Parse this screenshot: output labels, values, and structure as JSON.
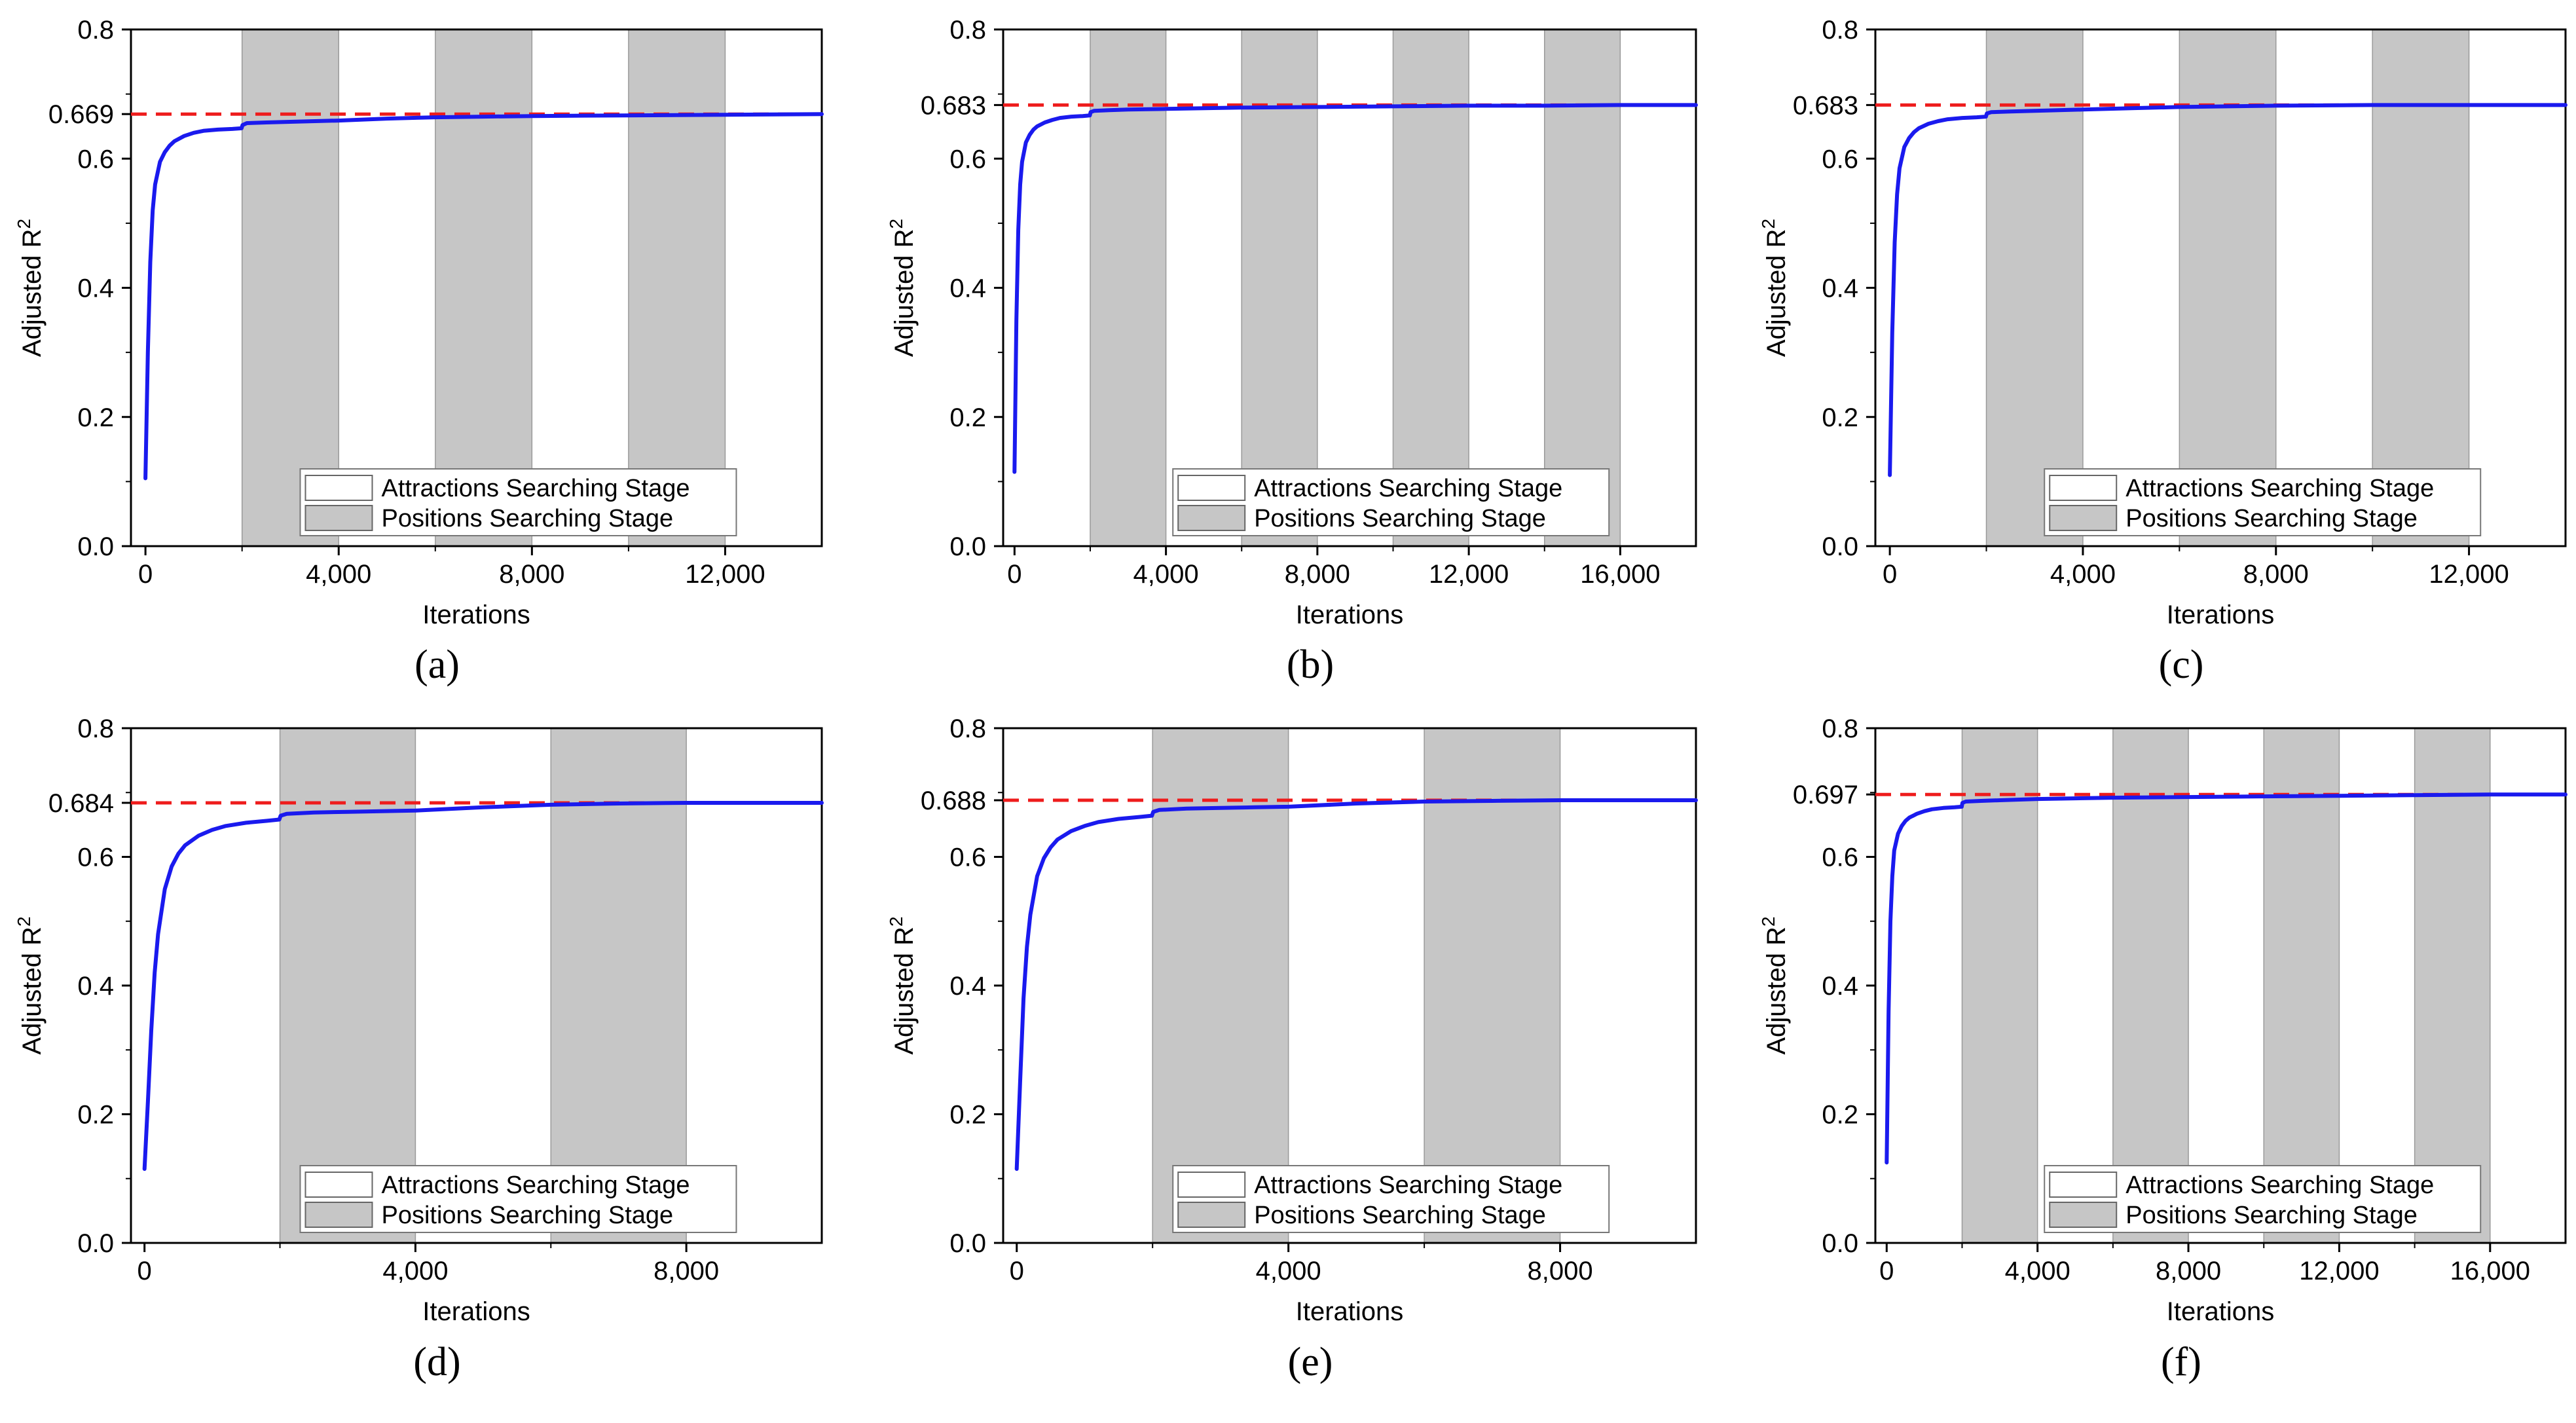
{
  "colors": {
    "curve": "#1a1aee",
    "reference": "#ee1c1c",
    "shade": "#c6c6c6",
    "shade_edge": "#9a9a9a",
    "axis": "#000000"
  },
  "chart_data": [
    {
      "type": "line",
      "panel_label": "(a)",
      "xlabel": "Iterations",
      "ylabel": "Adjusted R",
      "ylabel_sup": "2",
      "xlim": [
        -300,
        14000
      ],
      "ylim": [
        0.0,
        0.8
      ],
      "xticks": [
        0,
        4000,
        8000,
        12000
      ],
      "xtick_labels": [
        "0",
        "4,000",
        "8,000",
        "12,000"
      ],
      "yticks": [
        0.0,
        0.2,
        0.4,
        0.6,
        0.8
      ],
      "ytick_labels": [
        "0.0",
        "0.2",
        "0.4",
        "0.6",
        "0.8"
      ],
      "reference_value": 0.669,
      "reference_label": "0.669",
      "shaded_bands": [
        [
          2000,
          4000
        ],
        [
          6000,
          8000
        ],
        [
          10000,
          12000
        ]
      ],
      "legend": [
        "Attractions Searching Stage",
        "Positions Searching Stage"
      ],
      "legend_position": "lower-right",
      "series": [
        {
          "name": "Adjusted R2",
          "x": [
            0,
            50,
            100,
            150,
            200,
            300,
            400,
            500,
            600,
            800,
            1000,
            1200,
            1500,
            1800,
            1990,
            2010,
            2100,
            2500,
            3000,
            4000,
            5000,
            6000,
            7000,
            8000,
            10000,
            12000,
            14000
          ],
          "y": [
            0.105,
            0.3,
            0.44,
            0.52,
            0.56,
            0.595,
            0.61,
            0.62,
            0.627,
            0.635,
            0.64,
            0.643,
            0.645,
            0.646,
            0.647,
            0.652,
            0.655,
            0.656,
            0.657,
            0.659,
            0.662,
            0.664,
            0.665,
            0.666,
            0.667,
            0.668,
            0.669
          ]
        }
      ]
    },
    {
      "type": "line",
      "panel_label": "(b)",
      "xlabel": "Iterations",
      "ylabel": "Adjusted R",
      "ylabel_sup": "2",
      "xlim": [
        -300,
        18000
      ],
      "ylim": [
        0.0,
        0.8
      ],
      "xticks": [
        0,
        4000,
        8000,
        12000,
        16000
      ],
      "xtick_labels": [
        "0",
        "4,000",
        "8,000",
        "12,000",
        "16,000"
      ],
      "yticks": [
        0.0,
        0.2,
        0.4,
        0.6,
        0.8
      ],
      "ytick_labels": [
        "0.0",
        "0.2",
        "0.4",
        "0.6",
        "0.8"
      ],
      "reference_value": 0.683,
      "reference_label": "0.683",
      "shaded_bands": [
        [
          2000,
          4000
        ],
        [
          6000,
          8000
        ],
        [
          10000,
          12000
        ],
        [
          14000,
          16000
        ]
      ],
      "legend": [
        "Attractions Searching Stage",
        "Positions Searching Stage"
      ],
      "legend_position": "lower-right",
      "series": [
        {
          "name": "Adjusted R2",
          "x": [
            0,
            50,
            100,
            150,
            200,
            300,
            400,
            500,
            600,
            800,
            1000,
            1200,
            1500,
            1800,
            1990,
            2010,
            2100,
            2500,
            3000,
            4000,
            5000,
            6000,
            8000,
            10000,
            12000,
            14000,
            16000,
            18000
          ],
          "y": [
            0.115,
            0.35,
            0.49,
            0.56,
            0.595,
            0.625,
            0.637,
            0.645,
            0.65,
            0.656,
            0.66,
            0.663,
            0.665,
            0.666,
            0.667,
            0.672,
            0.674,
            0.675,
            0.676,
            0.677,
            0.678,
            0.679,
            0.68,
            0.681,
            0.682,
            0.682,
            0.683,
            0.683
          ]
        }
      ]
    },
    {
      "type": "line",
      "panel_label": "(c)",
      "xlabel": "Iterations",
      "ylabel": "Adjusted R",
      "ylabel_sup": "2",
      "xlim": [
        -300,
        14000
      ],
      "ylim": [
        0.0,
        0.8
      ],
      "xticks": [
        0,
        4000,
        8000,
        12000
      ],
      "xtick_labels": [
        "0",
        "4,000",
        "8,000",
        "12,000"
      ],
      "yticks": [
        0.0,
        0.2,
        0.4,
        0.6,
        0.8
      ],
      "ytick_labels": [
        "0.0",
        "0.2",
        "0.4",
        "0.6",
        "0.8"
      ],
      "reference_value": 0.683,
      "reference_label": "0.683",
      "shaded_bands": [
        [
          2000,
          4000
        ],
        [
          6000,
          8000
        ],
        [
          10000,
          12000
        ]
      ],
      "legend": [
        "Attractions Searching Stage",
        "Positions Searching Stage"
      ],
      "legend_position": "lower-right",
      "series": [
        {
          "name": "Adjusted R2",
          "x": [
            0,
            50,
            100,
            150,
            200,
            300,
            400,
            500,
            600,
            800,
            1000,
            1200,
            1500,
            1800,
            1990,
            2010,
            2100,
            2500,
            3000,
            4000,
            5000,
            6000,
            7000,
            8000,
            10000,
            12000,
            14000
          ],
          "y": [
            0.11,
            0.33,
            0.47,
            0.545,
            0.585,
            0.618,
            0.632,
            0.641,
            0.647,
            0.654,
            0.658,
            0.661,
            0.663,
            0.664,
            0.665,
            0.67,
            0.672,
            0.673,
            0.674,
            0.676,
            0.678,
            0.68,
            0.681,
            0.682,
            0.683,
            0.683,
            0.683
          ]
        }
      ]
    },
    {
      "type": "line",
      "panel_label": "(d)",
      "xlabel": "Iterations",
      "ylabel": "Adjusted R",
      "ylabel_sup": "2",
      "xlim": [
        -200,
        10000
      ],
      "ylim": [
        0.0,
        0.8
      ],
      "xticks": [
        0,
        4000,
        8000
      ],
      "xtick_labels": [
        "0",
        "4,000",
        "8,000"
      ],
      "yticks": [
        0.0,
        0.2,
        0.4,
        0.6,
        0.8
      ],
      "ytick_labels": [
        "0.0",
        "0.2",
        "0.4",
        "0.6",
        "0.8"
      ],
      "reference_value": 0.684,
      "reference_label": "0.684",
      "shaded_bands": [
        [
          2000,
          4000
        ],
        [
          6000,
          8000
        ]
      ],
      "legend": [
        "Attractions Searching Stage",
        "Positions Searching Stage"
      ],
      "legend_position": "lower-right",
      "series": [
        {
          "name": "Adjusted R2",
          "x": [
            0,
            50,
            100,
            150,
            200,
            300,
            400,
            500,
            600,
            800,
            1000,
            1200,
            1500,
            1800,
            1990,
            2010,
            2100,
            2500,
            3000,
            3500,
            4000,
            5000,
            6000,
            7000,
            8000,
            9000,
            10000
          ],
          "y": [
            0.115,
            0.22,
            0.33,
            0.42,
            0.48,
            0.55,
            0.585,
            0.605,
            0.618,
            0.633,
            0.642,
            0.648,
            0.653,
            0.656,
            0.658,
            0.664,
            0.667,
            0.669,
            0.67,
            0.671,
            0.672,
            0.677,
            0.681,
            0.683,
            0.684,
            0.684,
            0.684
          ]
        }
      ]
    },
    {
      "type": "line",
      "panel_label": "(e)",
      "xlabel": "Iterations",
      "ylabel": "Adjusted R",
      "ylabel_sup": "2",
      "xlim": [
        -200,
        10000
      ],
      "ylim": [
        0.0,
        0.8
      ],
      "xticks": [
        0,
        4000,
        8000
      ],
      "xtick_labels": [
        "0",
        "4,000",
        "8,000"
      ],
      "yticks": [
        0.0,
        0.2,
        0.4,
        0.6,
        0.8
      ],
      "ytick_labels": [
        "0.0",
        "0.2",
        "0.4",
        "0.6",
        "0.8"
      ],
      "reference_value": 0.688,
      "reference_label": "0.688",
      "shaded_bands": [
        [
          2000,
          4000
        ],
        [
          6000,
          8000
        ]
      ],
      "legend": [
        "Attractions Searching Stage",
        "Positions Searching Stage"
      ],
      "legend_position": "lower-right",
      "series": [
        {
          "name": "Adjusted R2",
          "x": [
            0,
            50,
            100,
            150,
            200,
            300,
            400,
            500,
            600,
            800,
            1000,
            1200,
            1500,
            1800,
            1990,
            2010,
            2100,
            2500,
            3000,
            3500,
            4000,
            5000,
            6000,
            7000,
            8000,
            9000,
            10000
          ],
          "y": [
            0.115,
            0.25,
            0.38,
            0.46,
            0.51,
            0.57,
            0.598,
            0.615,
            0.627,
            0.64,
            0.648,
            0.654,
            0.659,
            0.662,
            0.664,
            0.67,
            0.673,
            0.675,
            0.676,
            0.677,
            0.678,
            0.683,
            0.686,
            0.687,
            0.688,
            0.688,
            0.688
          ]
        }
      ]
    },
    {
      "type": "line",
      "panel_label": "(f)",
      "xlabel": "Iterations",
      "ylabel": "Adjusted R",
      "ylabel_sup": "2",
      "xlim": [
        -300,
        18000
      ],
      "ylim": [
        0.0,
        0.8
      ],
      "xticks": [
        0,
        4000,
        8000,
        12000,
        16000
      ],
      "xtick_labels": [
        "0",
        "4,000",
        "8,000",
        "12,000",
        "16,000"
      ],
      "yticks": [
        0.0,
        0.2,
        0.4,
        0.6,
        0.8
      ],
      "ytick_labels": [
        "0.0",
        "0.2",
        "0.4",
        "0.6",
        "0.8"
      ],
      "reference_value": 0.697,
      "reference_label": "0.697",
      "shaded_bands": [
        [
          2000,
          4000
        ],
        [
          6000,
          8000
        ],
        [
          10000,
          12000
        ],
        [
          14000,
          16000
        ]
      ],
      "legend": [
        "Attractions Searching Stage",
        "Positions Searching Stage"
      ],
      "legend_position": "lower-right",
      "series": [
        {
          "name": "Adjusted R2",
          "x": [
            0,
            50,
            100,
            150,
            200,
            300,
            400,
            500,
            600,
            800,
            1000,
            1200,
            1500,
            1800,
            1990,
            2010,
            2100,
            2500,
            3000,
            4000,
            5000,
            6000,
            8000,
            10000,
            12000,
            14000,
            16000,
            18000
          ],
          "y": [
            0.125,
            0.36,
            0.5,
            0.57,
            0.61,
            0.636,
            0.648,
            0.656,
            0.661,
            0.667,
            0.671,
            0.674,
            0.676,
            0.677,
            0.678,
            0.684,
            0.686,
            0.687,
            0.688,
            0.69,
            0.691,
            0.692,
            0.693,
            0.694,
            0.695,
            0.696,
            0.697,
            0.697
          ]
        }
      ]
    }
  ]
}
